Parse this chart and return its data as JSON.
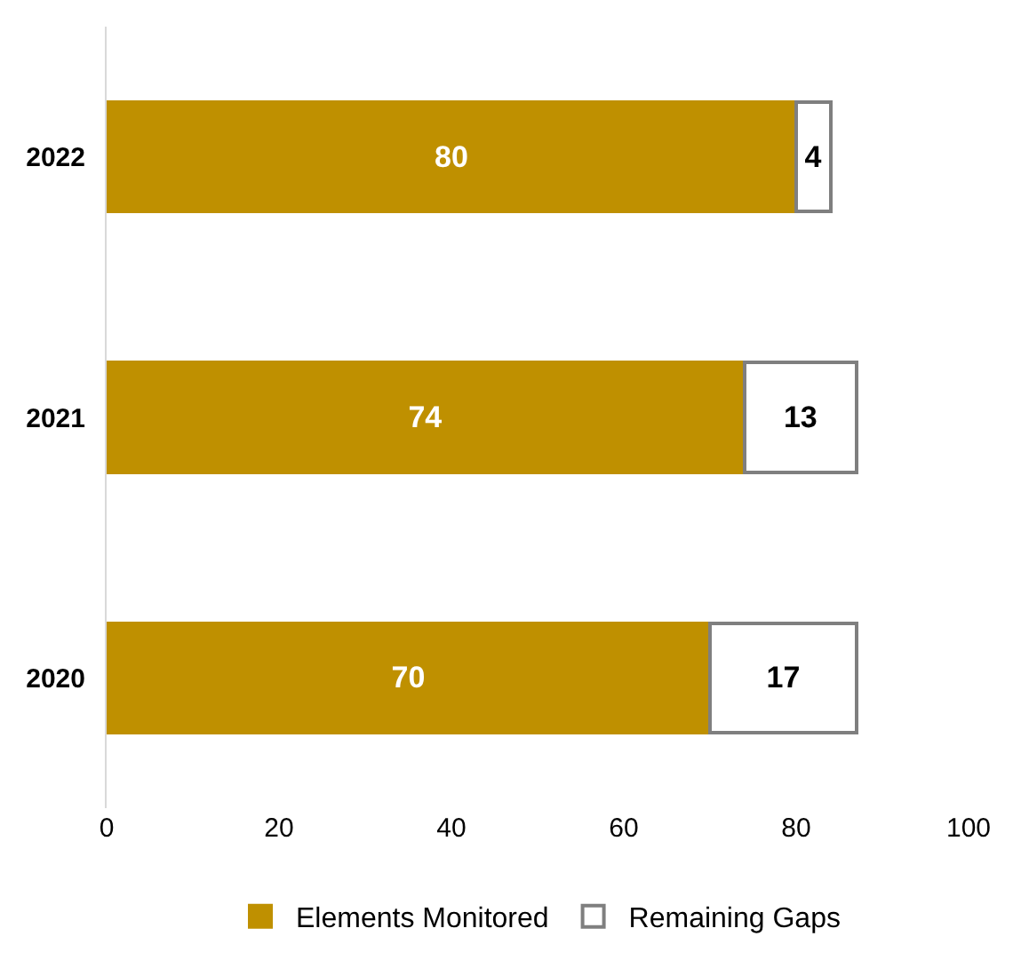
{
  "chart_data": {
    "type": "bar",
    "orientation": "horizontal",
    "stacked": true,
    "categories": [
      "2022",
      "2021",
      "2020"
    ],
    "series": [
      {
        "name": "Elements Monitored",
        "color": "#bf9000",
        "values": [
          80,
          74,
          70
        ]
      },
      {
        "name": "Remaining Gaps",
        "color": "#ffffff",
        "values": [
          4,
          13,
          17
        ]
      }
    ],
    "xlim": [
      0,
      100
    ],
    "xticks": [
      0,
      20,
      40,
      60,
      80,
      100
    ],
    "legend": "bottom",
    "data_labels": true
  }
}
